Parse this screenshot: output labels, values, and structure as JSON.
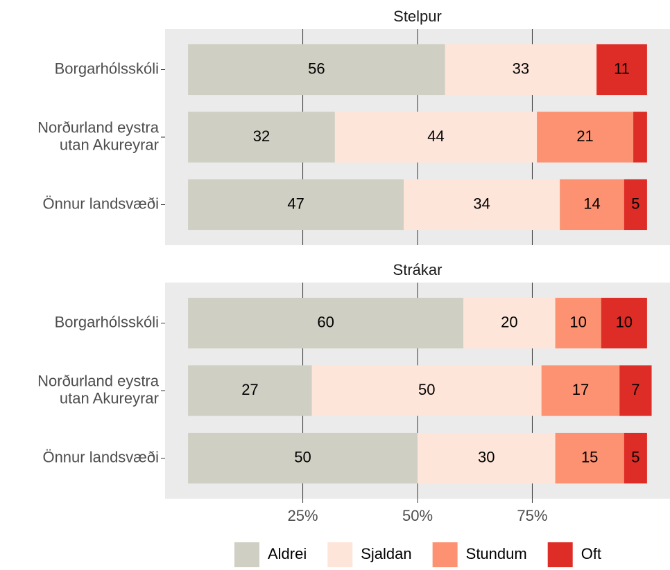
{
  "chart_data": [
    {
      "type": "bar",
      "title": "Stelpur",
      "categories": [
        "Borgarhólsskóli",
        "Norðurland eystra\nutan Akureyrar",
        "Önnur landsvæði"
      ],
      "series": [
        {
          "name": "Aldrei",
          "color": "#cfcfc3",
          "values": [
            56,
            32,
            47
          ]
        },
        {
          "name": "Sjaldan",
          "color": "#fee5d9",
          "values": [
            33,
            44,
            34
          ]
        },
        {
          "name": "Stundum",
          "color": "#fc9272",
          "values": [
            0,
            21,
            14
          ],
          "value_labels": [
            null,
            "21",
            "14"
          ]
        },
        {
          "name": "Oft",
          "color": "#de2d26",
          "values": [
            11,
            3,
            5
          ],
          "value_labels": [
            "11",
            null,
            "5"
          ]
        }
      ],
      "xlim": [
        -5,
        105
      ],
      "xticks": [
        {
          "value": 25,
          "label": "25%"
        },
        {
          "value": 50,
          "label": "50%"
        },
        {
          "value": 75,
          "label": "75%"
        }
      ],
      "grid": true
    },
    {
      "type": "bar",
      "title": "Strákar",
      "categories": [
        "Borgarhólsskóli",
        "Norðurland eystra\nutan Akureyrar",
        "Önnur landsvæði"
      ],
      "series": [
        {
          "name": "Aldrei",
          "color": "#cfcfc3",
          "values": [
            60,
            27,
            50
          ]
        },
        {
          "name": "Sjaldan",
          "color": "#fee5d9",
          "values": [
            20,
            50,
            30
          ]
        },
        {
          "name": "Stundum",
          "color": "#fc9272",
          "values": [
            10,
            17,
            15
          ]
        },
        {
          "name": "Oft",
          "color": "#de2d26",
          "values": [
            10,
            7,
            5
          ]
        }
      ],
      "xlim": [
        -5,
        105
      ],
      "xticks": [
        {
          "value": 25,
          "label": "25%"
        },
        {
          "value": 50,
          "label": "50%"
        },
        {
          "value": 75,
          "label": "75%"
        }
      ],
      "grid": true
    }
  ]
}
